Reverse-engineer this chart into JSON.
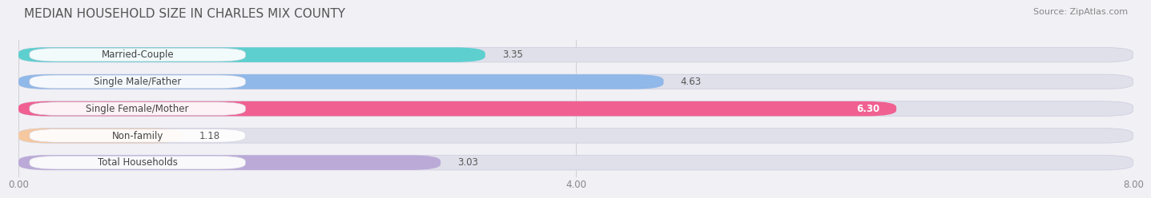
{
  "title": "MEDIAN HOUSEHOLD SIZE IN CHARLES MIX COUNTY",
  "source": "Source: ZipAtlas.com",
  "categories": [
    "Married-Couple",
    "Single Male/Father",
    "Single Female/Mother",
    "Non-family",
    "Total Households"
  ],
  "values": [
    3.35,
    4.63,
    6.3,
    1.18,
    3.03
  ],
  "bar_colors": [
    "#5ecfcf",
    "#90b8e8",
    "#f06090",
    "#f5c8a0",
    "#bbaad8"
  ],
  "value_labels": [
    "3.35",
    "4.63",
    "6.30",
    "1.18",
    "3.03"
  ],
  "value_label_colors": [
    "#555555",
    "#555555",
    "#ffffff",
    "#555555",
    "#555555"
  ],
  "xlim": [
    0,
    8.0
  ],
  "xticks": [
    0.0,
    4.0,
    8.0
  ],
  "xticklabels": [
    "0.00",
    "4.00",
    "8.00"
  ],
  "background_color": "#f0f0f5",
  "bar_background_color": "#e0e0eb",
  "title_fontsize": 11,
  "source_fontsize": 8,
  "label_fontsize": 8.5,
  "value_fontsize": 8.5,
  "bar_height": 0.55
}
